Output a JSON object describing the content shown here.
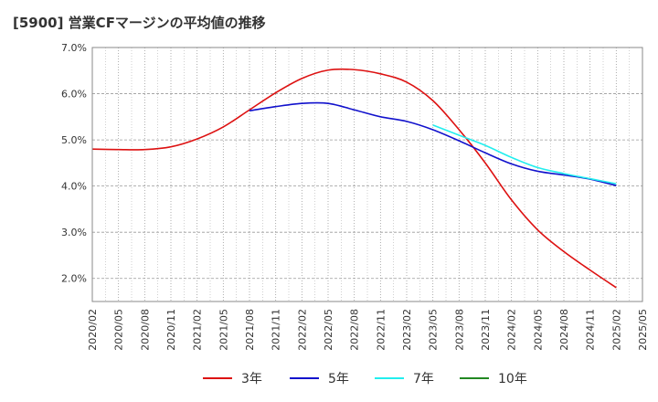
{
  "chart_data": {
    "type": "line",
    "title": "[5900]  営業CFマージンの平均値の推移",
    "xlabel": "",
    "ylabel": "",
    "ylim": [
      1.5,
      7.0
    ],
    "yticks": [
      "7.0%",
      "6.0%",
      "5.0%",
      "4.0%",
      "3.0%",
      "2.0%"
    ],
    "ytick_values": [
      7.0,
      6.0,
      5.0,
      4.0,
      3.0,
      2.0
    ],
    "x_ticks": [
      "2020/02",
      "2020/05",
      "2020/08",
      "2020/11",
      "2021/02",
      "2021/05",
      "2021/08",
      "2021/11",
      "2022/02",
      "2022/05",
      "2022/08",
      "2022/11",
      "2023/02",
      "2023/05",
      "2023/08",
      "2023/11",
      "2024/02",
      "2024/05",
      "2024/08",
      "2024/11",
      "2025/02",
      "2025/05"
    ],
    "grid": true,
    "legend_position": "bottom",
    "series": [
      {
        "name": "3年",
        "color": "#dd1111",
        "points": [
          [
            "2020/02",
            4.8
          ],
          [
            "2020/05",
            4.79
          ],
          [
            "2020/08",
            4.79
          ],
          [
            "2020/11",
            4.85
          ],
          [
            "2021/02",
            5.02
          ],
          [
            "2021/05",
            5.28
          ],
          [
            "2021/08",
            5.65
          ],
          [
            "2021/11",
            6.02
          ],
          [
            "2022/02",
            6.33
          ],
          [
            "2022/05",
            6.51
          ],
          [
            "2022/08",
            6.52
          ],
          [
            "2022/11",
            6.43
          ],
          [
            "2023/02",
            6.25
          ],
          [
            "2023/05",
            5.85
          ],
          [
            "2023/08",
            5.22
          ],
          [
            "2023/11",
            4.5
          ],
          [
            "2024/02",
            3.7
          ],
          [
            "2024/05",
            3.05
          ],
          [
            "2024/08",
            2.58
          ],
          [
            "2024/11",
            2.18
          ],
          [
            "2025/02",
            1.8
          ]
        ]
      },
      {
        "name": "5年",
        "color": "#1111cc",
        "points": [
          [
            "2021/08",
            5.63
          ],
          [
            "2021/11",
            5.72
          ],
          [
            "2022/02",
            5.79
          ],
          [
            "2022/05",
            5.79
          ],
          [
            "2022/08",
            5.65
          ],
          [
            "2022/11",
            5.5
          ],
          [
            "2023/02",
            5.4
          ],
          [
            "2023/05",
            5.22
          ],
          [
            "2023/08",
            4.98
          ],
          [
            "2023/11",
            4.72
          ],
          [
            "2024/02",
            4.48
          ],
          [
            "2024/05",
            4.32
          ],
          [
            "2024/08",
            4.24
          ],
          [
            "2024/11",
            4.15
          ],
          [
            "2025/02",
            4.01
          ]
        ]
      },
      {
        "name": "7年",
        "color": "#22eeee",
        "points": [
          [
            "2023/05",
            5.32
          ],
          [
            "2023/08",
            5.1
          ],
          [
            "2023/11",
            4.88
          ],
          [
            "2024/02",
            4.62
          ],
          [
            "2024/05",
            4.4
          ],
          [
            "2024/08",
            4.27
          ],
          [
            "2024/11",
            4.16
          ],
          [
            "2025/02",
            4.05
          ]
        ]
      },
      {
        "name": "10年",
        "color": "#228822",
        "points": []
      }
    ]
  }
}
